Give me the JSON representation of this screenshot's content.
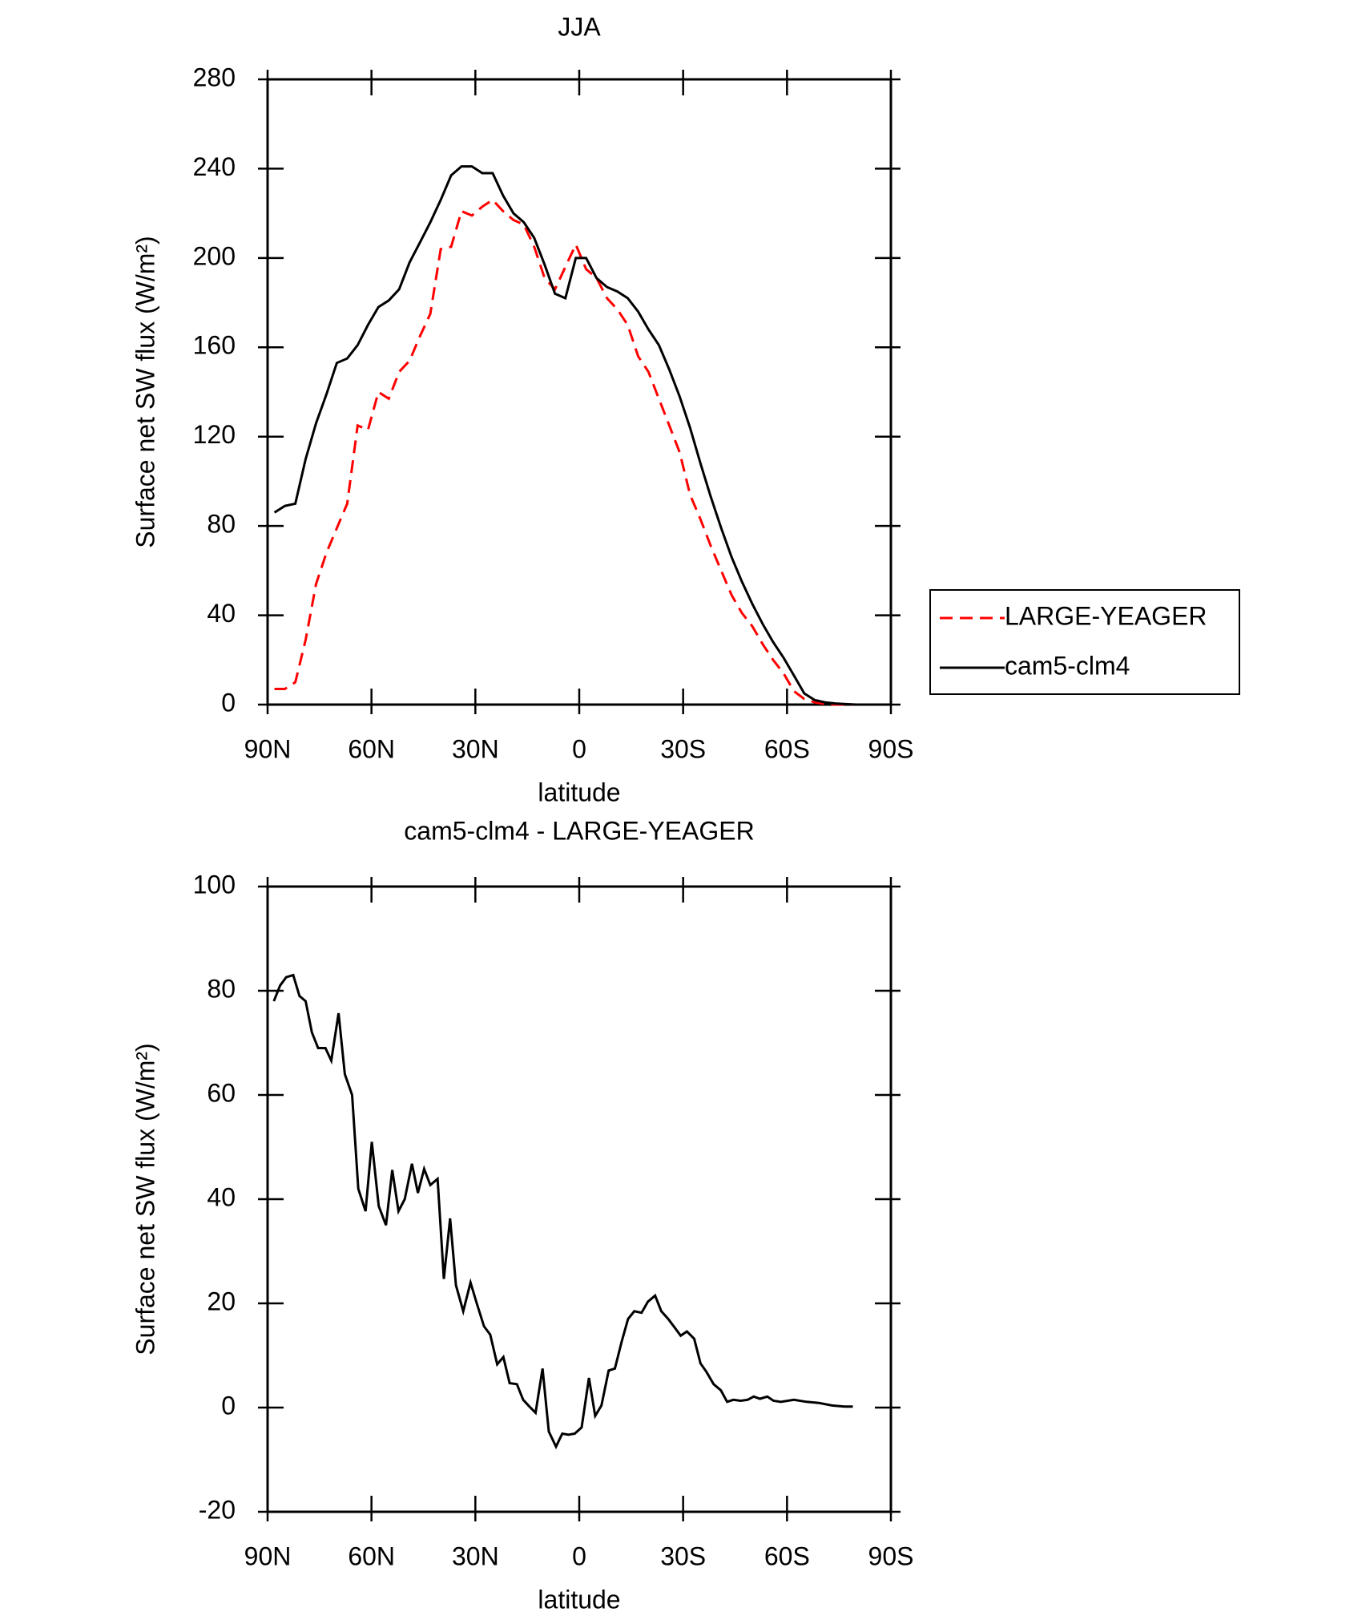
{
  "chart_data": [
    {
      "type": "line",
      "title": "JJA",
      "x_label": "latitude",
      "y_label": "Surface net SW flux (W/m²)",
      "x": [
        88,
        85,
        82,
        79,
        76,
        73,
        70,
        67,
        64,
        61,
        58,
        55,
        52,
        49,
        46,
        43,
        40,
        37,
        34,
        31,
        28,
        25,
        22,
        19,
        16,
        13,
        10,
        7,
        4,
        1,
        -2,
        -5,
        -8,
        -11,
        -14,
        -17,
        -20,
        -23,
        -26,
        -29,
        -32,
        -35,
        -38,
        -41,
        -44,
        -47,
        -50,
        -53,
        -56,
        -59,
        -62,
        -65,
        -68,
        -71,
        -74,
        -77,
        -80,
        -83,
        -86,
        -89
      ],
      "series": [
        {
          "name": "LARGE-YEAGER",
          "color": "#ff0000",
          "dash": true,
          "values": [
            7,
            7,
            10,
            29,
            54,
            68,
            79,
            90,
            125,
            123,
            140,
            137,
            149,
            154,
            165,
            175,
            204,
            205,
            221,
            219,
            223,
            226,
            221,
            217,
            215,
            205,
            191,
            186,
            196,
            206,
            195,
            191,
            182,
            177,
            170,
            156,
            149,
            137,
            125,
            113,
            94,
            83,
            71,
            60,
            49,
            41,
            35,
            27,
            20,
            14,
            6,
            2.5,
            1,
            0.3,
            0,
            0,
            0,
            0,
            0,
            0
          ]
        },
        {
          "name": "cam5-clm4",
          "color": "#000000",
          "dash": false,
          "values": [
            86,
            89,
            90,
            110,
            126,
            139,
            153,
            155,
            161,
            170,
            178,
            181,
            186,
            198,
            207,
            216,
            226,
            237,
            241,
            241,
            238,
            238,
            228,
            220,
            216,
            209,
            197,
            184,
            182,
            200,
            200,
            191,
            187,
            185,
            182,
            176,
            168,
            161,
            150,
            138,
            124,
            108,
            93,
            79,
            66,
            55,
            45,
            36,
            28,
            21,
            13,
            5,
            2,
            1,
            0.5,
            0.2,
            0,
            0,
            0,
            0
          ]
        }
      ],
      "xlim": [
        90,
        -90
      ],
      "xticks": [
        {
          "value": 90,
          "label": "90N"
        },
        {
          "value": 60,
          "label": "60N"
        },
        {
          "value": 30,
          "label": "30N"
        },
        0,
        {
          "value": -30,
          "label": "30S"
        },
        {
          "value": -60,
          "label": "60S"
        },
        {
          "value": -90,
          "label": "90S"
        }
      ],
      "ylim": [
        0,
        280
      ],
      "yticks": [
        0,
        40,
        80,
        120,
        160,
        200,
        240,
        280
      ],
      "legend": "right"
    },
    {
      "type": "line",
      "title": "cam5-clm4 - LARGE-YEAGER",
      "x_label": "latitude",
      "y_label": "Surface net SW flux (W/m²)",
      "x": [
        88.2,
        86.4,
        84.6,
        82.6,
        80.8,
        79.0,
        77.2,
        75.4,
        73.3,
        71.6,
        69.5,
        67.7,
        65.6,
        63.8,
        61.7,
        59.9,
        57.9,
        55.8,
        54.0,
        52.2,
        50.4,
        48.3,
        46.6,
        44.8,
        43.0,
        40.9,
        39.1,
        37.3,
        35.6,
        33.5,
        31.4,
        29.6,
        27.5,
        25.7,
        23.7,
        21.9,
        20.1,
        18.0,
        16.2,
        14.4,
        12.6,
        10.6,
        8.8,
        6.7,
        4.9,
        3.1,
        1.3,
        -0.7,
        -2.8,
        -4.6,
        -6.4,
        -8.5,
        -10.3,
        -12.3,
        -14.1,
        -15.9,
        -18.0,
        -19.8,
        -21.9,
        -23.7,
        -25.7,
        -27.5,
        -29.3,
        -31.1,
        -33.2,
        -35.0,
        -36.7,
        -38.8,
        -40.9,
        -42.7,
        -44.5,
        -46.6,
        -48.6,
        -50.4,
        -52.2,
        -54.3,
        -56.1,
        -58.2,
        -62.0,
        -65.6,
        -69.2,
        -73.0,
        -76.6,
        -79.0
      ],
      "series": [
        {
          "color": "#000000",
          "dash": false,
          "values": [
            78,
            81,
            82.6,
            83,
            79,
            78,
            72,
            69,
            69,
            66.6,
            75.7,
            64,
            60,
            42,
            37.7,
            51,
            38.7,
            35,
            45.6,
            37.7,
            40,
            46.8,
            41.2,
            45.8,
            42.7,
            43.9,
            24.7,
            36.3,
            23.5,
            18.5,
            24,
            20,
            15.6,
            14,
            8.3,
            9.7,
            4.7,
            4.5,
            1.5,
            0.2,
            -1,
            7.5,
            -4.6,
            -7.5,
            -5,
            -5.2,
            -5,
            -3.8,
            5.7,
            -1.6,
            0.4,
            7.1,
            7.5,
            12.8,
            17,
            18.5,
            18.2,
            20.3,
            21.5,
            18.5,
            17,
            15.4,
            13.8,
            14.6,
            13.2,
            8.5,
            6.9,
            4.5,
            3.3,
            1.1,
            1.5,
            1.3,
            1.5,
            2.1,
            1.7,
            2.1,
            1.3,
            1.1,
            1.5,
            1.1,
            0.9,
            0.4,
            0.2,
            0.2
          ]
        }
      ],
      "xlim": [
        90,
        -90
      ],
      "xticks": [
        {
          "value": 90,
          "label": "90N"
        },
        {
          "value": 60,
          "label": "60N"
        },
        {
          "value": 30,
          "label": "30N"
        },
        0,
        {
          "value": -30,
          "label": "30S"
        },
        {
          "value": -60,
          "label": "60S"
        },
        {
          "value": -90,
          "label": "90S"
        }
      ],
      "ylim": [
        -20,
        100
      ],
      "yticks": [
        -20,
        0,
        20,
        40,
        60,
        80,
        100
      ]
    }
  ]
}
